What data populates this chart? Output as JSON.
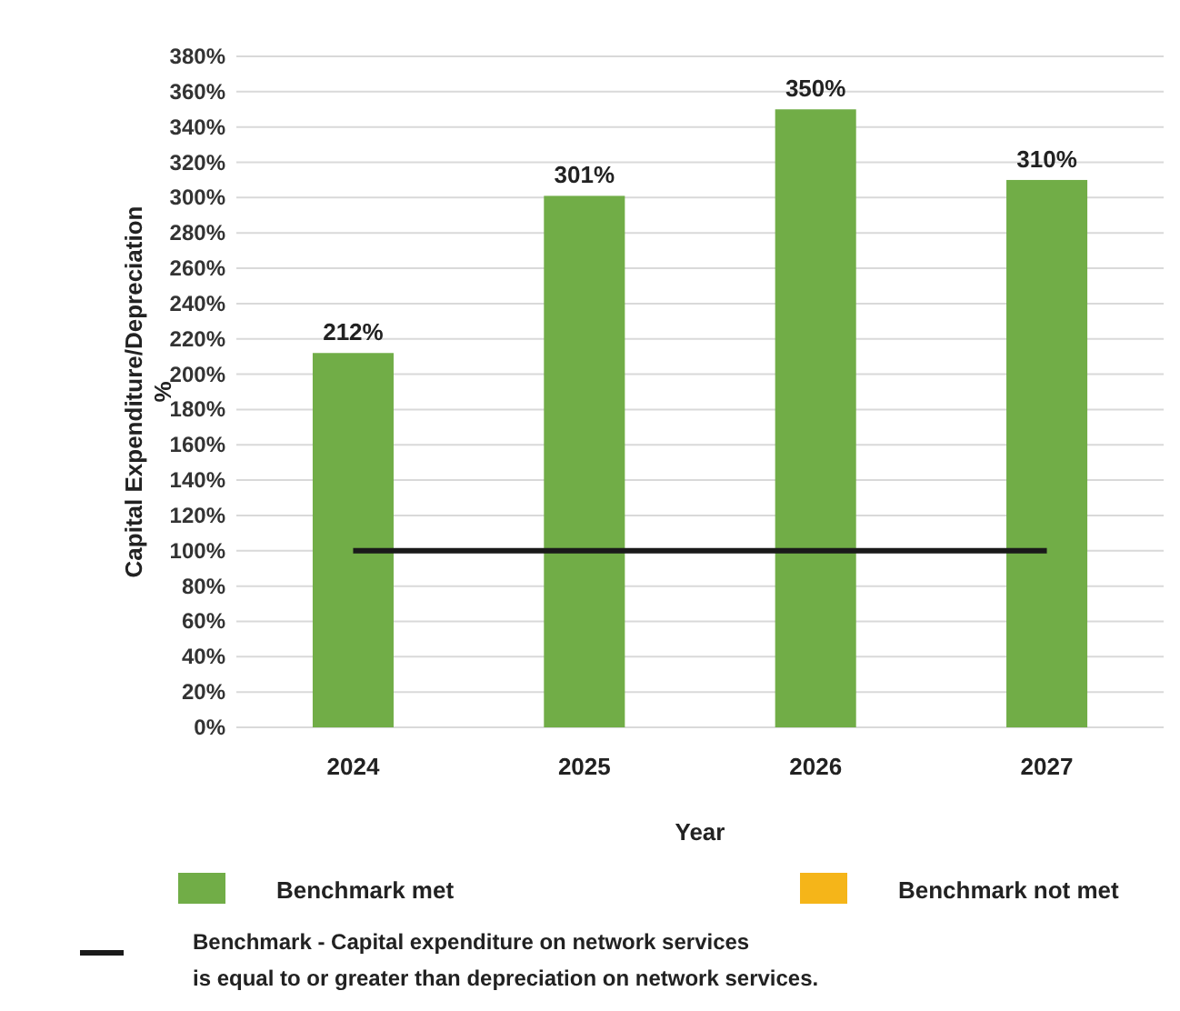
{
  "chart_data": {
    "type": "bar",
    "xlabel": "Year",
    "ylabel": "Capital Expenditure/Depreciation\n%",
    "categories": [
      "2024",
      "2025",
      "2026",
      "2027"
    ],
    "series": [
      {
        "name": "Benchmark met",
        "color": "#71ad47",
        "values": [
          212,
          301,
          350,
          310
        ],
        "value_labels": [
          "212%",
          "301%",
          "350%",
          "310%"
        ]
      },
      {
        "name": "Benchmark not met",
        "color": "#f5b519",
        "values": [
          null,
          null,
          null,
          null
        ]
      }
    ],
    "ylim": [
      0,
      380
    ],
    "yticks": [
      {
        "value": 0,
        "label": "0%"
      },
      {
        "value": 20,
        "label": "20%"
      },
      {
        "value": 40,
        "label": "40%"
      },
      {
        "value": 60,
        "label": "60%"
      },
      {
        "value": 80,
        "label": "80%"
      },
      {
        "value": 100,
        "label": "100%"
      },
      {
        "value": 120,
        "label": "120%"
      },
      {
        "value": 140,
        "label": "140%"
      },
      {
        "value": 160,
        "label": "160%"
      },
      {
        "value": 180,
        "label": "180%"
      },
      {
        "value": 200,
        "label": "200%"
      },
      {
        "value": 220,
        "label": "220%"
      },
      {
        "value": 240,
        "label": "240%"
      },
      {
        "value": 260,
        "label": "260%"
      },
      {
        "value": 280,
        "label": "280%"
      },
      {
        "value": 300,
        "label": "300%"
      },
      {
        "value": 320,
        "label": "320%"
      },
      {
        "value": 340,
        "label": "340%"
      },
      {
        "value": 360,
        "label": "360%"
      },
      {
        "value": 380,
        "label": "380%"
      }
    ],
    "grid": "y",
    "legend": "bottom",
    "ref_lines": [
      {
        "axis": "y",
        "value": 100,
        "label": "Benchmark - Capital expenditure on network services\nis equal to or greater than depreciation on network services.",
        "color": "#1a1a1a"
      }
    ]
  }
}
